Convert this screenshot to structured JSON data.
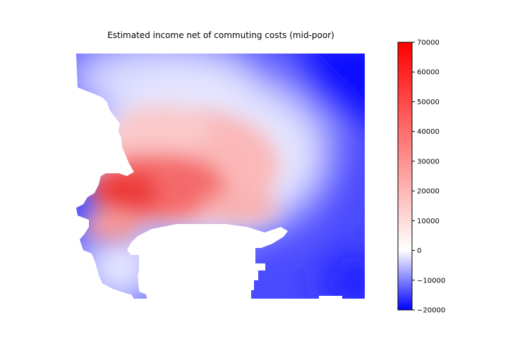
{
  "chart_data": {
    "type": "heatmap",
    "title": "Estimated income net of commuting costs (mid-poor)",
    "xlabel": "",
    "ylabel": "",
    "axes_visible": false,
    "colormap": "bwr",
    "colorbar": {
      "vmin": -20000,
      "vmax": 70000,
      "ticks": [
        -20000,
        -10000,
        0,
        10000,
        20000,
        30000,
        40000,
        50000,
        60000,
        70000
      ],
      "tick_labels": [
        "−20000",
        "−10000",
        "0",
        "10000",
        "20000",
        "30000",
        "40000",
        "50000",
        "60000",
        "70000"
      ],
      "colors": {
        "low": "#0000ff",
        "mid": "#ffffff",
        "high": "#ff0000"
      }
    },
    "spatial_pattern": {
      "high_region": "west-centre (approx. 50000–70000)",
      "mid_region": "north-west strip and south-west (approx. 20000–30000)",
      "low_region": "east and north-east (approx. −20000 to 0)"
    }
  }
}
